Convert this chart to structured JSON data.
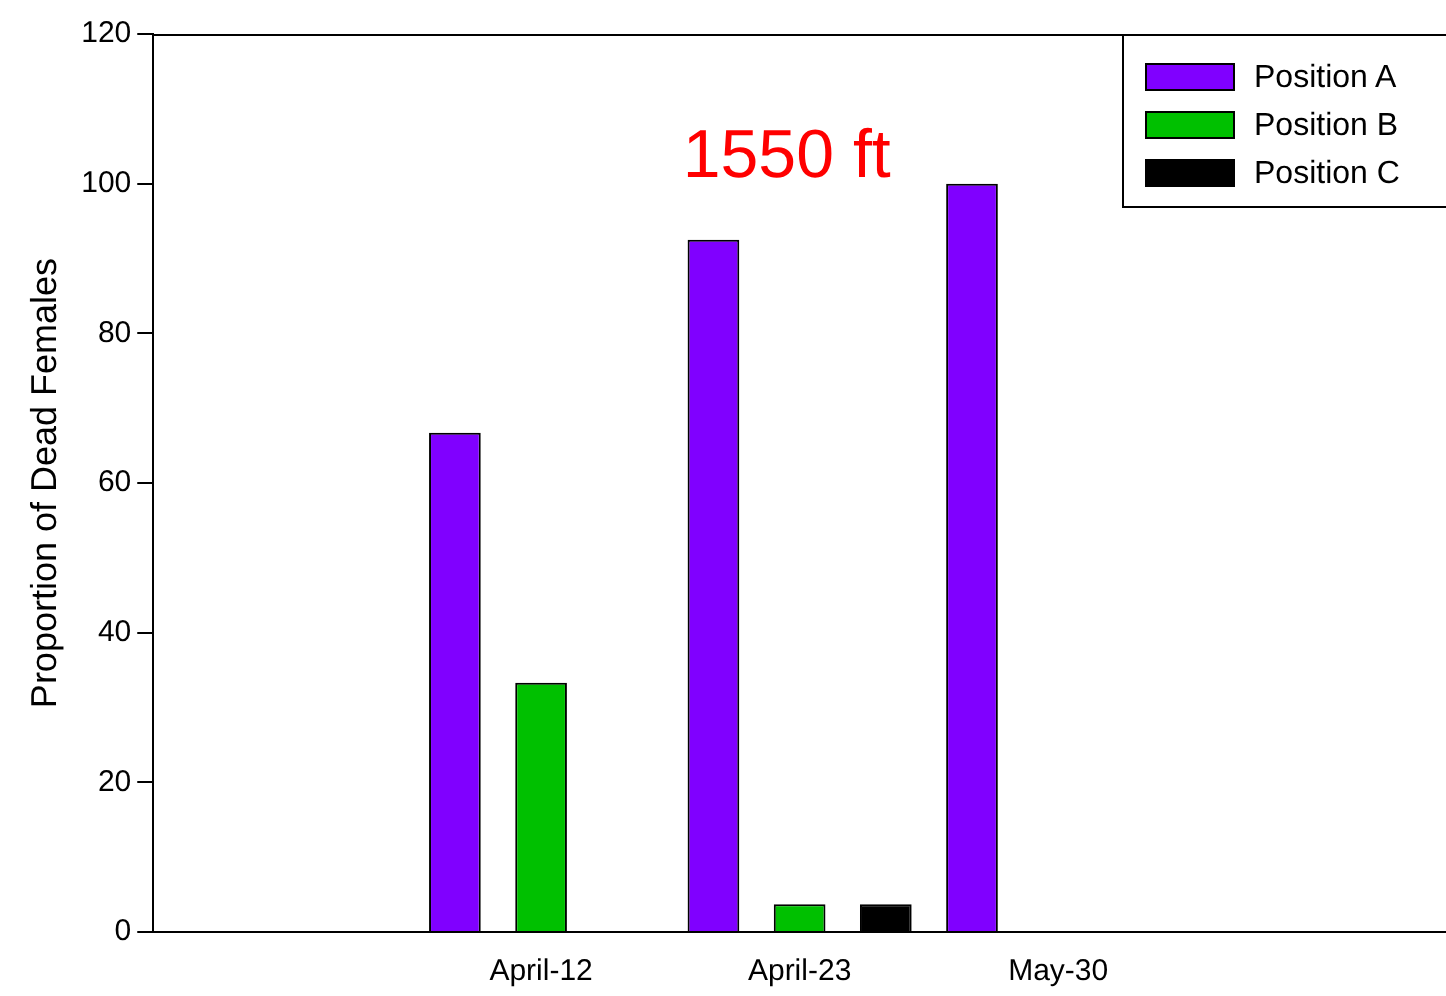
{
  "chart_data": {
    "type": "bar",
    "ylabel": "Proportion of Dead Females",
    "categories": [
      null,
      "April-12",
      "April-23",
      "May-30",
      null
    ],
    "series": [
      {
        "name": "Position A",
        "color": "#8000ff",
        "values": [
          null,
          66.7,
          92.5,
          100,
          null
        ]
      },
      {
        "name": "Position B",
        "color": "#00c000",
        "values": [
          null,
          33.3,
          3.7,
          null,
          null
        ]
      },
      {
        "name": "Position C",
        "color": "#000000",
        "values": [
          null,
          null,
          3.7,
          null,
          null
        ]
      }
    ],
    "ylim": [
      0,
      120
    ],
    "yticks": [
      0,
      20,
      40,
      60,
      80,
      100,
      120
    ],
    "grid": false,
    "legend": "top right",
    "annotations": [
      "1550 ft"
    ]
  }
}
